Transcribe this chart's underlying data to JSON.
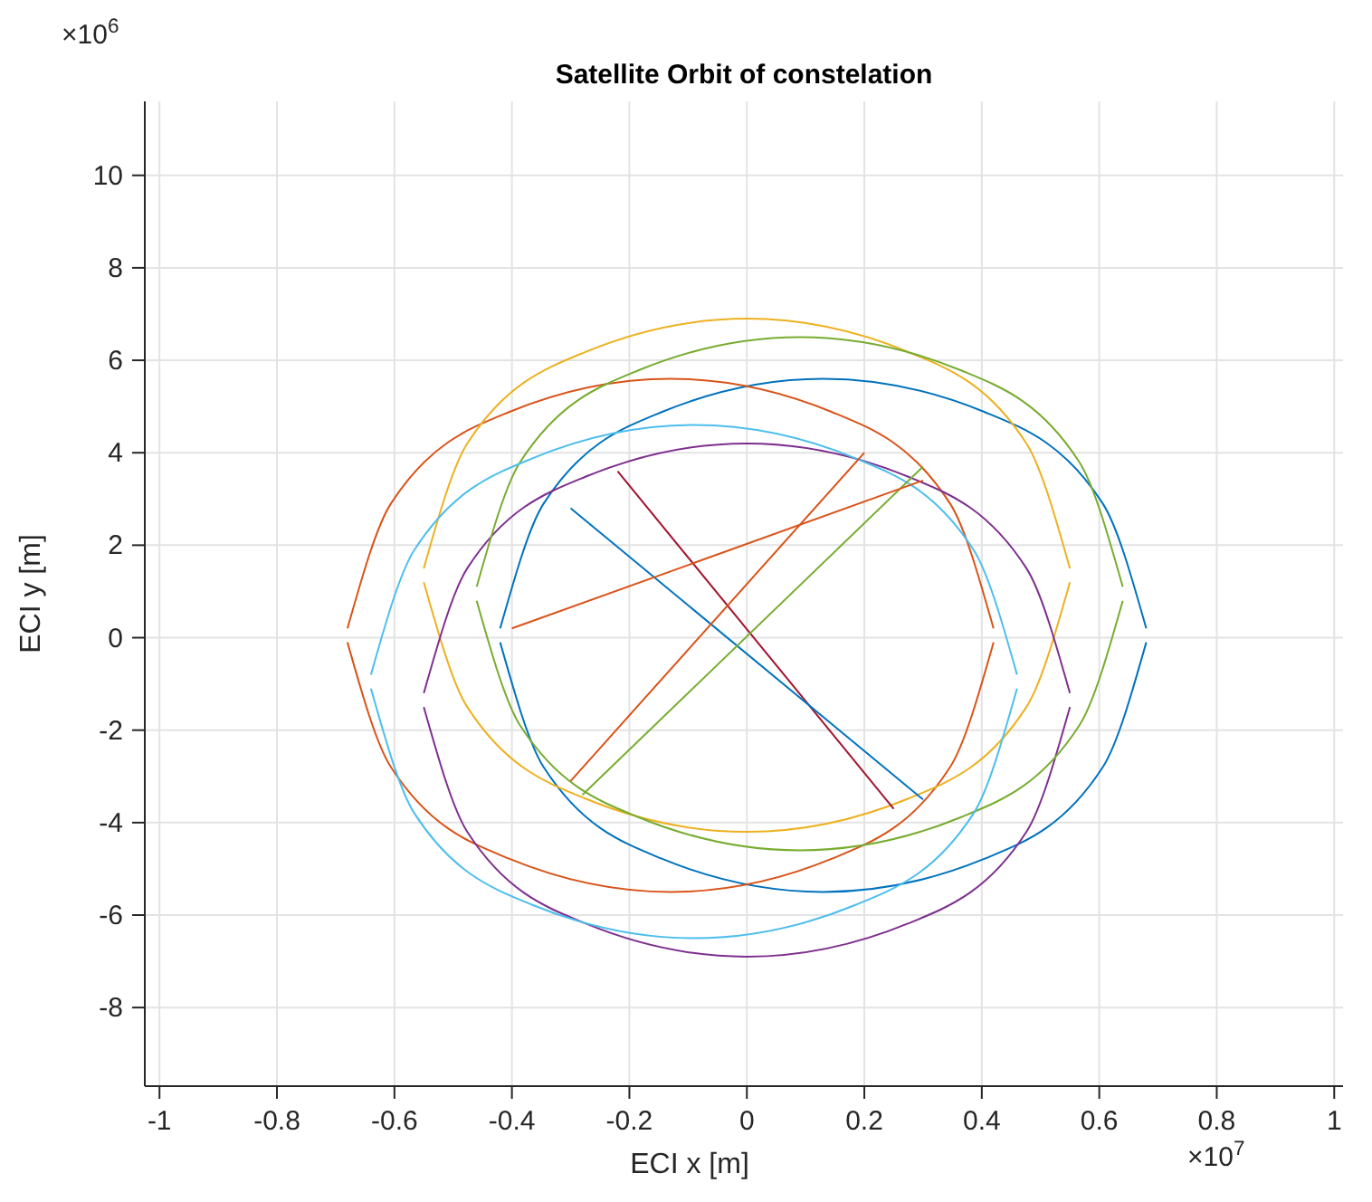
{
  "chart_data": {
    "type": "line",
    "title": "Satellite Orbit of constelation",
    "xlabel": "ECI x [m]",
    "ylabel": "ECI y [m]",
    "xlim": [
      -1.025,
      1.015
    ],
    "ylim": [
      -9.7,
      11.6
    ],
    "xticks": [
      -1,
      -0.8,
      -0.6,
      -0.4,
      -0.2,
      0,
      0.2,
      0.4,
      0.6,
      0.8,
      1
    ],
    "yticks": [
      -8,
      -6,
      -4,
      -2,
      0,
      2,
      4,
      6,
      8,
      10
    ],
    "grid": true,
    "annotations": [
      "×10$^{6}$",
      "×10$^{7}$"
    ],
    "series": [
      {
        "color": "#0072bd",
        "x": [
          -0.42,
          -0.346,
          -0.145,
          0.13,
          0.405,
          0.606,
          0.68
        ],
        "values": [
          0.2,
          2.9,
          4.88,
          5.6,
          4.88,
          2.9,
          0.2
        ]
      },
      {
        "color": "#0072bd",
        "x": [
          -0.42,
          -0.346,
          -0.145,
          0.13,
          0.405,
          0.606,
          0.68
        ],
        "values": [
          -0.1,
          -2.8,
          -4.78,
          -5.5,
          -4.78,
          -2.8,
          -0.1
        ]
      },
      {
        "color": "#d95319",
        "x": [
          -0.68,
          -0.606,
          -0.405,
          -0.13,
          0.145,
          0.346,
          0.42
        ],
        "values": [
          0.2,
          2.9,
          4.88,
          5.6,
          4.88,
          2.9,
          0.2
        ]
      },
      {
        "color": "#d95319",
        "x": [
          -0.68,
          -0.606,
          -0.405,
          -0.13,
          0.145,
          0.346,
          0.42
        ],
        "values": [
          -0.1,
          -2.8,
          -4.78,
          -5.5,
          -4.78,
          -2.8,
          -0.1
        ]
      },
      {
        "color": "#edb120",
        "x": [
          -0.55,
          -0.476,
          -0.275,
          0,
          0.275,
          0.476,
          0.55
        ],
        "values": [
          1.5,
          4.2,
          6.18,
          6.9,
          6.18,
          4.2,
          1.5
        ]
      },
      {
        "color": "#edb120",
        "x": [
          -0.55,
          -0.476,
          -0.275,
          0,
          0.275,
          0.476,
          0.55
        ],
        "values": [
          1.2,
          -1.5,
          -3.48,
          -4.2,
          -3.48,
          -1.5,
          1.2
        ]
      },
      {
        "color": "#7e2f8e",
        "x": [
          -0.55,
          -0.476,
          -0.275,
          0,
          0.275,
          0.476,
          0.55
        ],
        "values": [
          -1.2,
          1.5,
          3.48,
          4.2,
          3.48,
          1.5,
          -1.2
        ]
      },
      {
        "color": "#7e2f8e",
        "x": [
          -0.55,
          -0.476,
          -0.275,
          0,
          0.275,
          0.476,
          0.55
        ],
        "values": [
          -1.5,
          -4.2,
          -6.18,
          -6.9,
          -6.18,
          -4.2,
          -1.5
        ]
      },
      {
        "color": "#77ac30",
        "x": [
          -0.46,
          -0.386,
          -0.185,
          0.09,
          0.365,
          0.566,
          0.64
        ],
        "values": [
          1.1,
          3.8,
          5.78,
          6.5,
          5.78,
          3.8,
          1.1
        ]
      },
      {
        "color": "#77ac30",
        "x": [
          -0.46,
          -0.386,
          -0.185,
          0.09,
          0.365,
          0.566,
          0.64
        ],
        "values": [
          0.8,
          -1.9,
          -3.88,
          -4.6,
          -3.88,
          -1.9,
          0.8
        ]
      },
      {
        "color": "#4dbeee",
        "x": [
          -0.64,
          -0.566,
          -0.365,
          -0.09,
          0.185,
          0.386,
          0.46
        ],
        "values": [
          -0.8,
          1.9,
          3.88,
          4.6,
          3.88,
          1.9,
          -0.8
        ]
      },
      {
        "color": "#4dbeee",
        "x": [
          -0.64,
          -0.566,
          -0.365,
          -0.09,
          0.185,
          0.386,
          0.46
        ],
        "values": [
          -1.1,
          -3.8,
          -5.78,
          -6.5,
          -5.78,
          -3.8,
          -1.1
        ]
      },
      {
        "color": "#a2142f",
        "x": [
          -0.22,
          0.25
        ],
        "values": [
          3.6,
          -3.7
        ]
      },
      {
        "color": "#0072bd",
        "x": [
          -0.3,
          0.3
        ],
        "values": [
          2.8,
          -3.5
        ]
      },
      {
        "color": "#d95319",
        "x": [
          -0.3,
          0.2
        ],
        "values": [
          -3.1,
          4.0
        ]
      },
      {
        "color": "#77ac30",
        "x": [
          -0.28,
          0.3
        ],
        "values": [
          -3.4,
          3.7
        ]
      },
      {
        "color": "#d95319",
        "x": [
          -0.4,
          0.3
        ],
        "values": [
          0.2,
          3.4
        ]
      }
    ]
  }
}
